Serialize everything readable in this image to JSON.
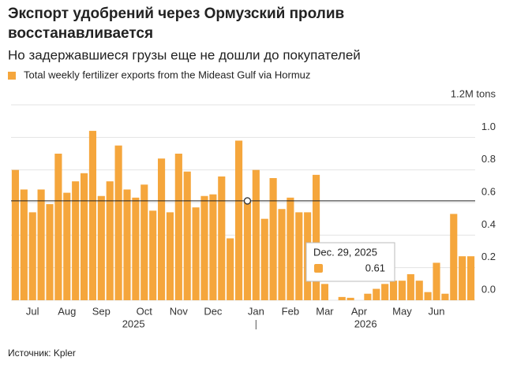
{
  "chart_data": {
    "type": "bar",
    "title": "Экспорт удобрений через Ормузский пролив восстанавливается",
    "subtitle": "Но задержавшиеся грузы еще не дошли до покупателей",
    "source": "Источник: Kpler",
    "categories": [
      null,
      null,
      "Jul",
      null,
      null,
      null,
      "Aug",
      null,
      null,
      null,
      "Sep",
      null,
      null,
      null,
      null,
      "Oct",
      null,
      null,
      null,
      "Nov",
      null,
      null,
      null,
      "Dec",
      null,
      null,
      null,
      null,
      "Jan",
      null,
      null,
      null,
      "Feb",
      null,
      null,
      null,
      "Mar",
      null,
      null,
      null,
      "Apr",
      null,
      null,
      null,
      null,
      "May",
      null,
      null,
      null,
      "Jun",
      null,
      null,
      null,
      null
    ],
    "years": [
      "2025",
      "2026"
    ],
    "series": [
      {
        "name": "Total weekly fertilizer exports from the Mideast Gulf via Hormuz",
        "color": "#f5a63c",
        "values": [
          0.8,
          0.68,
          0.54,
          0.68,
          0.59,
          0.9,
          0.66,
          0.73,
          0.78,
          1.04,
          0.64,
          0.73,
          0.95,
          0.68,
          0.63,
          0.71,
          0.55,
          0.87,
          0.54,
          0.9,
          0.79,
          0.57,
          0.64,
          0.65,
          0.76,
          0.38,
          0.98,
          0.61,
          0.8,
          0.5,
          0.75,
          0.56,
          0.63,
          0.54,
          0.54,
          0.77,
          0.1,
          0,
          0.02,
          0.015,
          0,
          0.04,
          0.07,
          0.1,
          0.12,
          0.12,
          0.16,
          0.12,
          0.05,
          0.23,
          0.04,
          0.53,
          0.27,
          0.27
        ]
      }
    ],
    "ylim": [
      0,
      1.2
    ],
    "yticks": [
      {
        "value": 0,
        "label": "0.0"
      },
      0.2,
      0.4,
      0.6,
      0.8,
      {
        "value": 1,
        "label": "1.0"
      },
      {
        "value": 1.2,
        "label": "1.2M tons"
      }
    ],
    "grid": true,
    "tooltip": {
      "index": 27,
      "label": "Dec. 29, 2025"
    }
  }
}
